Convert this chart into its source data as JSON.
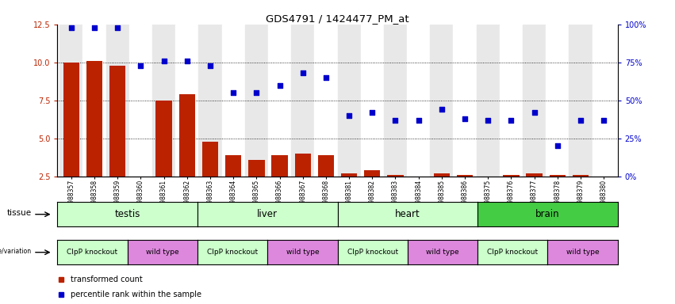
{
  "title": "GDS4791 / 1424477_PM_at",
  "samples": [
    "GSM988357",
    "GSM988358",
    "GSM988359",
    "GSM988360",
    "GSM988361",
    "GSM988362",
    "GSM988363",
    "GSM988364",
    "GSM988365",
    "GSM988366",
    "GSM988367",
    "GSM988368",
    "GSM988381",
    "GSM988382",
    "GSM988383",
    "GSM988384",
    "GSM988385",
    "GSM988386",
    "GSM988375",
    "GSM988376",
    "GSM988377",
    "GSM988378",
    "GSM988379",
    "GSM988380"
  ],
  "bar_values": [
    10.0,
    10.1,
    9.8,
    2.5,
    7.5,
    7.9,
    4.8,
    3.9,
    3.6,
    3.9,
    4.0,
    3.9,
    2.7,
    2.9,
    2.6,
    2.5,
    2.7,
    2.6,
    2.5,
    2.6,
    2.7,
    2.6,
    2.6,
    2.5
  ],
  "percentile_values": [
    98,
    98,
    98,
    73,
    76,
    76,
    73,
    55,
    55,
    60,
    68,
    65,
    40,
    42,
    37,
    37,
    44,
    38,
    37,
    37,
    42,
    20,
    37,
    37
  ],
  "tissues": [
    {
      "label": "testis",
      "start": 0,
      "end": 6,
      "color": "#ccffcc"
    },
    {
      "label": "liver",
      "start": 6,
      "end": 12,
      "color": "#ccffcc"
    },
    {
      "label": "heart",
      "start": 12,
      "end": 18,
      "color": "#ccffcc"
    },
    {
      "label": "brain",
      "start": 18,
      "end": 24,
      "color": "#44cc44"
    }
  ],
  "genotypes": [
    {
      "label": "ClpP knockout",
      "start": 0,
      "end": 3,
      "color": "#ccffcc"
    },
    {
      "label": "wild type",
      "start": 3,
      "end": 6,
      "color": "#dd88dd"
    },
    {
      "label": "ClpP knockout",
      "start": 6,
      "end": 9,
      "color": "#ccffcc"
    },
    {
      "label": "wild type",
      "start": 9,
      "end": 12,
      "color": "#dd88dd"
    },
    {
      "label": "ClpP knockout",
      "start": 12,
      "end": 15,
      "color": "#ccffcc"
    },
    {
      "label": "wild type",
      "start": 15,
      "end": 18,
      "color": "#dd88dd"
    },
    {
      "label": "ClpP knockout",
      "start": 18,
      "end": 21,
      "color": "#ccffcc"
    },
    {
      "label": "wild type",
      "start": 21,
      "end": 24,
      "color": "#dd88dd"
    }
  ],
  "ylim_left": [
    2.5,
    12.5
  ],
  "yticks_left": [
    2.5,
    5.0,
    7.5,
    10.0,
    12.5
  ],
  "ylim_right": [
    0,
    100
  ],
  "yticks_right": [
    0,
    25,
    50,
    75,
    100
  ],
  "bar_color": "#bb2200",
  "scatter_color": "#0000cc",
  "col_bg_odd": "#e8e8e8",
  "col_bg_even": "#ffffff",
  "legend_bar_label": "transformed count",
  "legend_scatter_label": "percentile rank within the sample"
}
